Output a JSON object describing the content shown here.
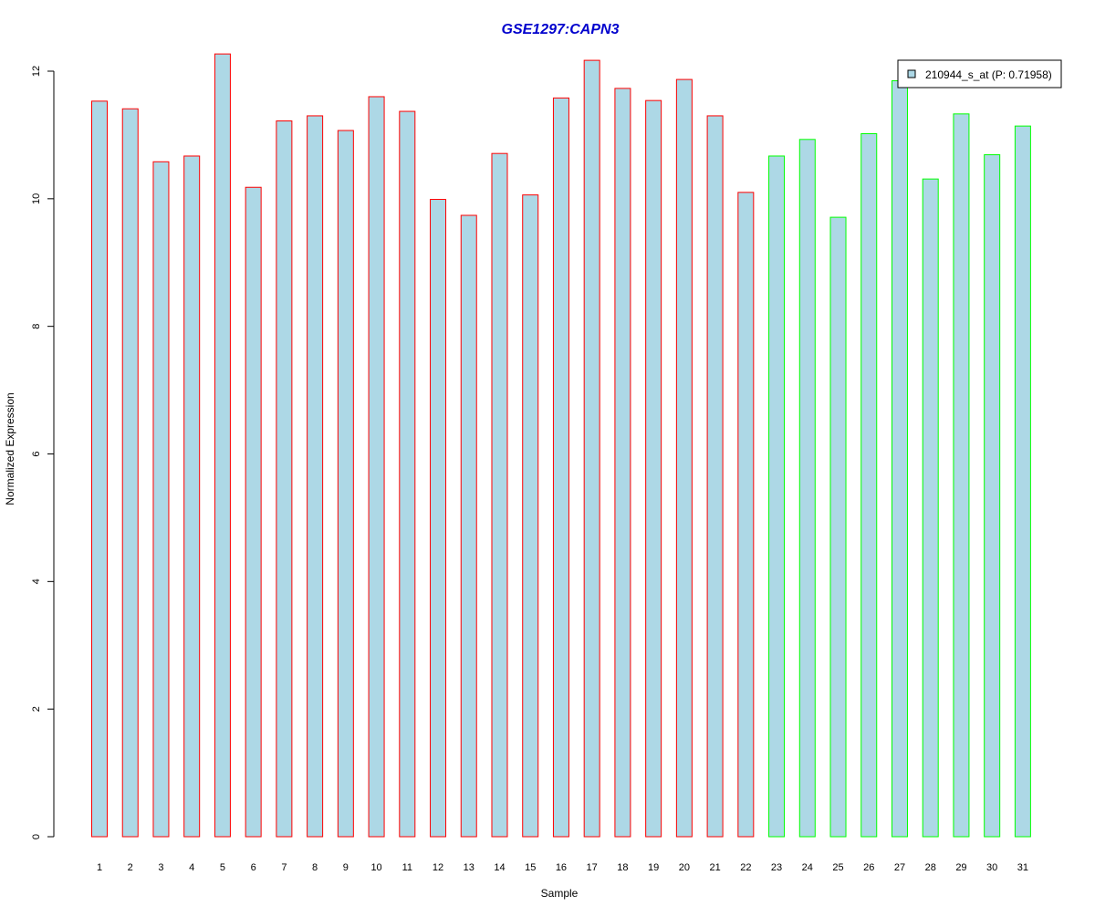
{
  "chart_data": {
    "type": "bar",
    "title": "GSE1297:CAPN3",
    "xlabel": "Sample",
    "ylabel": "Normalized Expression",
    "ylim": [
      0,
      12.3
    ],
    "yticks": [
      0,
      2,
      4,
      6,
      8,
      10,
      12
    ],
    "categories": [
      "1",
      "2",
      "3",
      "4",
      "5",
      "6",
      "7",
      "8",
      "9",
      "10",
      "11",
      "12",
      "13",
      "14",
      "15",
      "16",
      "17",
      "18",
      "19",
      "20",
      "21",
      "22",
      "23",
      "24",
      "25",
      "26",
      "27",
      "28",
      "29",
      "30",
      "31"
    ],
    "series": [
      {
        "name": "210944_s_at (P: 0.71958)",
        "values": [
          11.53,
          11.41,
          10.58,
          10.67,
          12.27,
          10.18,
          11.22,
          11.3,
          11.07,
          11.6,
          11.37,
          9.99,
          9.74,
          10.71,
          10.06,
          11.58,
          12.17,
          11.73,
          11.54,
          11.87,
          11.3,
          10.1,
          10.67,
          10.93,
          9.71,
          11.02,
          11.85,
          10.31,
          11.33,
          10.69,
          11.14
        ],
        "fill": "#add8e6"
      }
    ],
    "bar_edge_colors": [
      "#ff0000",
      "#ff0000",
      "#ff0000",
      "#ff0000",
      "#ff0000",
      "#ff0000",
      "#ff0000",
      "#ff0000",
      "#ff0000",
      "#ff0000",
      "#ff0000",
      "#ff0000",
      "#ff0000",
      "#ff0000",
      "#ff0000",
      "#ff0000",
      "#ff0000",
      "#ff0000",
      "#ff0000",
      "#ff0000",
      "#ff0000",
      "#ff0000",
      "#00ff00",
      "#00ff00",
      "#00ff00",
      "#00ff00",
      "#00ff00",
      "#00ff00",
      "#00ff00",
      "#00ff00",
      "#00ff00"
    ],
    "title_color": "#0000cd",
    "legend_position": "top-right",
    "grid": false
  }
}
